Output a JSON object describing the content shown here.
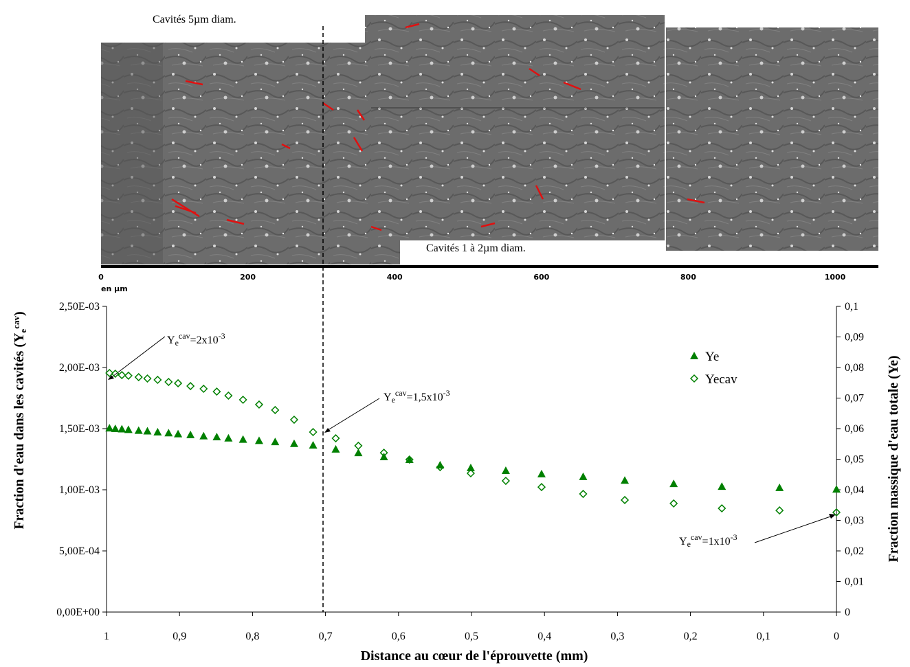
{
  "figure": {
    "labels": [
      "Cavités 5µm diam.",
      "Cavités 1 à 2µm diam."
    ],
    "scale_bar": {
      "ticks": [
        0,
        200,
        400,
        600,
        800,
        1000
      ],
      "unit": "en µm"
    }
  },
  "chart_data": {
    "type": "scatter",
    "xlabel": "Distance au cœur de l'éprouvette (mm)",
    "ylabel": [
      "Fraction d'eau dans les cavités (Y",
      "e",
      "cav",
      ")"
    ],
    "y2label": "Fraction massique d'eau totale (Ye)",
    "xlim": [
      1,
      0
    ],
    "xticks": [
      1,
      {
        "value": 0.9,
        "label": "0,9"
      },
      {
        "value": 0.8,
        "label": "0,8"
      },
      {
        "value": 0.7,
        "label": "0,7"
      },
      {
        "value": 0.6,
        "label": "0,6"
      },
      {
        "value": 0.5,
        "label": "0,5"
      },
      {
        "value": 0.4,
        "label": "0,4"
      },
      {
        "value": 0.3,
        "label": "0,3"
      },
      {
        "value": 0.2,
        "label": "0,2"
      },
      {
        "value": 0.1,
        "label": "0,1"
      },
      0
    ],
    "ylim": [
      0,
      0.0025
    ],
    "yticks": [
      {
        "value": 0,
        "label": "0,00E+00"
      },
      {
        "value": 0.0005,
        "label": "5,00E-04"
      },
      {
        "value": 0.001,
        "label": "1,00E-03"
      },
      {
        "value": 0.0015,
        "label": "1,50E-03"
      },
      {
        "value": 0.002,
        "label": "2,00E-03"
      },
      {
        "value": 0.0025,
        "label": "2,50E-03"
      }
    ],
    "y2lim": [
      0,
      0.1
    ],
    "y2ticks": [
      0,
      {
        "value": 0.01,
        "label": "0,01"
      },
      {
        "value": 0.02,
        "label": "0,02"
      },
      {
        "value": 0.03,
        "label": "0,03"
      },
      {
        "value": 0.04,
        "label": "0,04"
      },
      {
        "value": 0.05,
        "label": "0,05"
      },
      {
        "value": 0.06,
        "label": "0,06"
      },
      {
        "value": 0.07,
        "label": "0,07"
      },
      {
        "value": 0.08,
        "label": "0,08"
      },
      {
        "value": 0.09,
        "label": "0,09"
      },
      {
        "value": 0.1,
        "label": "0,1"
      }
    ],
    "x": [
      0.996,
      0.988,
      0.979,
      0.97,
      0.956,
      0.944,
      0.93,
      0.915,
      0.902,
      0.885,
      0.867,
      0.849,
      0.833,
      0.813,
      0.791,
      0.769,
      0.743,
      0.717,
      0.686,
      0.655,
      0.62,
      0.585,
      0.543,
      0.501,
      0.453,
      0.404,
      0.347,
      0.29,
      0.223,
      0.157,
      0.078,
      0
    ],
    "series": [
      {
        "name": "Ye",
        "color": "#008000",
        "marker": "triangle",
        "axis": "y2",
        "values": [
          0.0602,
          0.06,
          0.0599,
          0.0597,
          0.0594,
          0.0592,
          0.0589,
          0.0586,
          0.0583,
          0.058,
          0.0576,
          0.0573,
          0.0569,
          0.0565,
          0.0561,
          0.0557,
          0.0551,
          0.0546,
          0.0533,
          0.0521,
          0.0508,
          0.0499,
          0.0481,
          0.0472,
          0.0463,
          0.0452,
          0.0443,
          0.0431,
          0.042,
          0.0411,
          0.0407,
          0.0402
        ]
      },
      {
        "name": "Yecav",
        "color": "#008000",
        "marker": "diamond",
        "axis": "y",
        "values": [
          0.001955,
          0.001949,
          0.001938,
          0.001933,
          0.001921,
          0.00191,
          0.001899,
          0.001882,
          0.001871,
          0.001848,
          0.001826,
          0.001803,
          0.00177,
          0.001736,
          0.001697,
          0.001652,
          0.001573,
          0.001472,
          0.001421,
          0.00136,
          0.001303,
          0.001247,
          0.001185,
          0.001135,
          0.001073,
          0.001022,
          0.000966,
          0.000916,
          0.000888,
          0.000848,
          0.000831,
          0.000815
        ]
      }
    ],
    "annotations": [
      [
        "Y",
        "e",
        "cav",
        "=2x10",
        "-3"
      ],
      [
        "Y",
        "e",
        "cav",
        "=1,5x10",
        "-3"
      ],
      [
        "Y",
        "e",
        "cav",
        "=1x10",
        "-3"
      ]
    ],
    "legend": "upper right"
  }
}
